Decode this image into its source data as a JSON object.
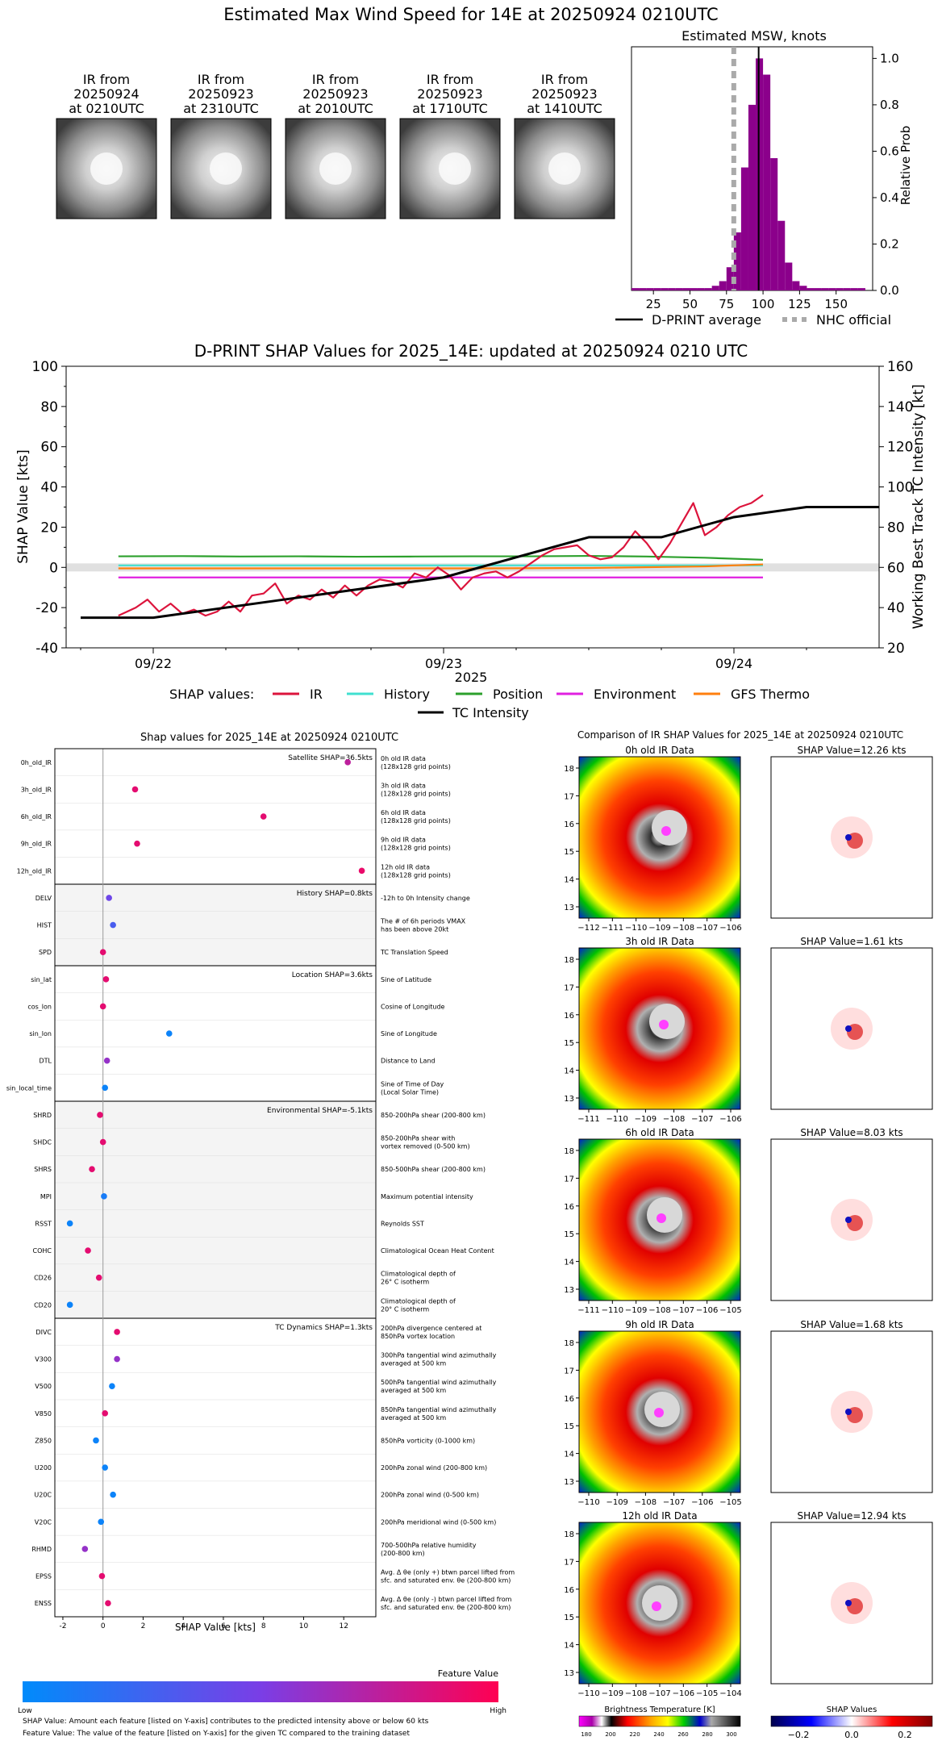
{
  "top": {
    "title": "Estimated Max Wind Speed for 14E at 20250924 0210UTC",
    "ir_thumbnails": [
      {
        "l1": "IR from",
        "l2": "20250924",
        "l3": "at 0210UTC"
      },
      {
        "l1": "IR from",
        "l2": "20250923",
        "l3": "at 2310UTC"
      },
      {
        "l1": "IR from",
        "l2": "20250923",
        "l3": "at 2010UTC"
      },
      {
        "l1": "IR from",
        "l2": "20250923",
        "l3": "at 1710UTC"
      },
      {
        "l1": "IR from",
        "l2": "20250923",
        "l3": "at 1410UTC"
      }
    ],
    "hist_title": "Estimated MSW, knots",
    "hist_ylabel": "Relative Prob",
    "legend_avg": "D-PRINT average",
    "legend_nhc": "NHC official"
  },
  "ts": {
    "title": "D-PRINT SHAP Values for 2025_14E: updated at 20250924 0210 UTC",
    "ylabel_left": "SHAP Value [kts]",
    "ylabel_right": "Working Best Track TC Intensity [kt]",
    "xlabel": "2025",
    "legend_title": "SHAP values:",
    "legend_tc": "TC Intensity"
  },
  "shap": {
    "title": "Shap values for 2025_14E at 20250924 0210UTC",
    "xlabel": "SHAP Value [kts]",
    "colorbar_title": "Feature Value",
    "colorbar_low": "Low",
    "colorbar_high": "High",
    "footnote1": "SHAP Value: Amount each feature [listed on Y-axis] contributes to the predicted intensity above or below 60 kts",
    "footnote2": "Feature Value: The value of the feature [listed on Y-axis] for the given TC compared to the training dataset",
    "groups": [
      {
        "label": "Satellite SHAP=36.5kts"
      },
      {
        "label": "History SHAP=0.8kts"
      },
      {
        "label": "Location SHAP=3.6kts"
      },
      {
        "label": "Environmental SHAP=-5.1kts"
      },
      {
        "label": "TC Dynamics SHAP=1.3kts"
      }
    ]
  },
  "ir": {
    "title": "Comparison of IR SHAP Values for 2025_14E at 20250924 0210UTC",
    "rows": [
      {
        "ir_title": "0h old IR Data",
        "shap_title": "SHAP Value=12.26 kts",
        "x_ticks": [
          "−112",
          "−111",
          "−110",
          "−109",
          "−108",
          "−107",
          "−106"
        ],
        "y_ticks": [
          "18",
          "17",
          "16",
          "15",
          "14",
          "13"
        ]
      },
      {
        "ir_title": "3h old IR Data",
        "shap_title": "SHAP Value=1.61 kts",
        "x_ticks": [
          "−111",
          "−110",
          "−109",
          "−108",
          "−107",
          "−106"
        ],
        "y_ticks": [
          "18",
          "17",
          "16",
          "15",
          "14",
          "13"
        ]
      },
      {
        "ir_title": "6h old IR Data",
        "shap_title": "SHAP Value=8.03 kts",
        "x_ticks": [
          "−111",
          "−110",
          "−109",
          "−108",
          "−107",
          "−106",
          "−105"
        ],
        "y_ticks": [
          "18",
          "17",
          "16",
          "15",
          "14",
          "13"
        ]
      },
      {
        "ir_title": "9h old IR Data",
        "shap_title": "SHAP Value=1.68 kts",
        "x_ticks": [
          "−110",
          "−109",
          "−108",
          "−107",
          "−106",
          "−105"
        ],
        "y_ticks": [
          "18",
          "17",
          "16",
          "15",
          "14",
          "13"
        ]
      },
      {
        "ir_title": "12h old IR Data",
        "shap_title": "SHAP Value=12.94 kts",
        "x_ticks": [
          "−110",
          "−109",
          "−108",
          "−107",
          "−106",
          "−105",
          "−104"
        ],
        "y_ticks": [
          "18",
          "17",
          "16",
          "15",
          "14",
          "13"
        ]
      }
    ],
    "cbar_bt_label": "Brightness Temperature [K]",
    "cbar_bt_ticks": [
      "180",
      "200",
      "220",
      "240",
      "260",
      "280",
      "300"
    ],
    "cbar_shap_label": "SHAP Values",
    "cbar_shap_ticks": [
      "−0.2",
      "0.0",
      "0.2"
    ]
  },
  "chart_data": [
    {
      "type": "bar",
      "title": "Estimated MSW, knots",
      "xlabel": "",
      "ylabel": "Relative Prob",
      "xlim": [
        10,
        175
      ],
      "ylim": [
        0,
        1.0
      ],
      "x_ticks": [
        25,
        50,
        75,
        100,
        125,
        150
      ],
      "y_ticks": [
        0.0,
        0.2,
        0.4,
        0.6,
        0.8,
        1.0
      ],
      "bin_width": 5,
      "bins": [
        {
          "x": 10,
          "y": 0.01
        },
        {
          "x": 15,
          "y": 0.01
        },
        {
          "x": 20,
          "y": 0.01
        },
        {
          "x": 25,
          "y": 0.01
        },
        {
          "x": 30,
          "y": 0.01
        },
        {
          "x": 35,
          "y": 0.01
        },
        {
          "x": 40,
          "y": 0.01
        },
        {
          "x": 45,
          "y": 0.01
        },
        {
          "x": 50,
          "y": 0.01
        },
        {
          "x": 55,
          "y": 0.01
        },
        {
          "x": 60,
          "y": 0.01
        },
        {
          "x": 65,
          "y": 0.02
        },
        {
          "x": 70,
          "y": 0.04
        },
        {
          "x": 75,
          "y": 0.1
        },
        {
          "x": 80,
          "y": 0.25
        },
        {
          "x": 85,
          "y": 0.53
        },
        {
          "x": 90,
          "y": 0.8
        },
        {
          "x": 95,
          "y": 1.0
        },
        {
          "x": 100,
          "y": 0.93
        },
        {
          "x": 105,
          "y": 0.57
        },
        {
          "x": 110,
          "y": 0.3
        },
        {
          "x": 115,
          "y": 0.12
        },
        {
          "x": 120,
          "y": 0.04
        },
        {
          "x": 125,
          "y": 0.02
        },
        {
          "x": 130,
          "y": 0.01
        },
        {
          "x": 135,
          "y": 0.01
        },
        {
          "x": 140,
          "y": 0.01
        },
        {
          "x": 145,
          "y": 0.01
        },
        {
          "x": 150,
          "y": 0.01
        },
        {
          "x": 155,
          "y": 0.01
        },
        {
          "x": 160,
          "y": 0.01
        },
        {
          "x": 165,
          "y": 0.01
        }
      ],
      "dprint_average": 97,
      "nhc_official": 80,
      "bar_color": "#8b008b"
    },
    {
      "type": "line",
      "title": "D-PRINT SHAP Values for 2025_14E: updated at 20250924 0210 UTC",
      "xlabel": "2025",
      "ylabel": "SHAP Value [kts]",
      "y2label": "Working Best Track TC Intensity [kt]",
      "xlim": [
        -0.3,
        2.5
      ],
      "ylim": [
        -40,
        100
      ],
      "y2lim": [
        20,
        160
      ],
      "x_ticks": [
        {
          "x": 0,
          "label": "09/22"
        },
        {
          "x": 1,
          "label": "09/23"
        },
        {
          "x": 2,
          "label": "09/24"
        }
      ],
      "y_ticks": [
        -40,
        -20,
        0,
        20,
        40,
        60,
        80,
        100
      ],
      "y2_ticks": [
        20,
        40,
        60,
        80,
        100,
        120,
        140,
        160
      ],
      "series": [
        {
          "name": "IR",
          "color": "#dc143c",
          "x": [
            -0.12,
            -0.06,
            -0.02,
            0.02,
            0.06,
            0.1,
            0.14,
            0.18,
            0.22,
            0.26,
            0.3,
            0.34,
            0.38,
            0.42,
            0.46,
            0.5,
            0.54,
            0.58,
            0.62,
            0.66,
            0.7,
            0.74,
            0.78,
            0.82,
            0.86,
            0.9,
            0.94,
            0.98,
            1.02,
            1.06,
            1.1,
            1.14,
            1.18,
            1.22,
            1.26,
            1.3,
            1.34,
            1.38,
            1.42,
            1.46,
            1.5,
            1.54,
            1.58,
            1.62,
            1.66,
            1.7,
            1.74,
            1.78,
            1.82,
            1.86,
            1.9,
            1.94,
            1.98,
            2.02,
            2.06,
            2.1
          ],
          "y": [
            -24,
            -20,
            -16,
            -22,
            -18,
            -23,
            -21,
            -24,
            -22,
            -17,
            -22,
            -14,
            -13,
            -8,
            -18,
            -14,
            -16,
            -11,
            -15,
            -9,
            -14,
            -9,
            -6,
            -7,
            -10,
            -3,
            -5,
            0,
            -4,
            -11,
            -5,
            -3,
            -2,
            -5,
            -2,
            2,
            6,
            9,
            10,
            11,
            6,
            4,
            5,
            10,
            18,
            12,
            4,
            12,
            22,
            32,
            16,
            20,
            26,
            30,
            32,
            36
          ]
        },
        {
          "name": "History",
          "color": "#40e0d0",
          "x": [
            -0.12,
            0.3,
            0.7,
            1.1,
            1.5,
            1.9,
            2.1
          ],
          "y": [
            1,
            1,
            1,
            1,
            1,
            1,
            1
          ]
        },
        {
          "name": "Position",
          "color": "#2ca02c",
          "x": [
            -0.12,
            0.1,
            0.3,
            0.5,
            0.7,
            0.9,
            1.1,
            1.3,
            1.5,
            1.7,
            1.9,
            2.1
          ],
          "y": [
            5.5,
            5.6,
            5.4,
            5.5,
            5.3,
            5.4,
            5.5,
            5.5,
            5.7,
            5.4,
            4.8,
            3.8
          ]
        },
        {
          "name": "Environment",
          "color": "#e020e0",
          "x": [
            -0.12,
            0.3,
            0.7,
            1.1,
            1.5,
            1.9,
            2.1
          ],
          "y": [
            -5,
            -5,
            -5,
            -5,
            -5,
            -5,
            -5
          ]
        },
        {
          "name": "GFS Thermo",
          "color": "#ff7f0e",
          "x": [
            -0.12,
            0.3,
            0.7,
            1.1,
            1.5,
            1.9,
            2.1
          ],
          "y": [
            -0.5,
            -0.5,
            -0.5,
            -0.5,
            -0.3,
            0.5,
            1.5
          ]
        },
        {
          "name": "TC Intensity",
          "color": "#000000",
          "axis": "right",
          "x": [
            -0.25,
            0.0,
            0.5,
            1.0,
            1.5,
            1.75,
            2.0,
            2.25,
            2.5
          ],
          "y": [
            35,
            35,
            45,
            55,
            75,
            75,
            85,
            90,
            90
          ]
        }
      ]
    },
    {
      "type": "scatter",
      "title": "Shap values for 2025_14E at 20250924 0210UTC",
      "xlabel": "SHAP Value [kts]",
      "ylabel": "",
      "xlim": [
        -2.4,
        13.6
      ],
      "x_ticks": [
        -2,
        0,
        2,
        4,
        6,
        8,
        10,
        12
      ],
      "features": [
        {
          "name": "0h_old_IR",
          "desc": [
            "0h old IR data",
            "(128x128 grid points)"
          ],
          "shap": 12.2,
          "value": 0.75
        },
        {
          "name": "3h_old_IR",
          "desc": [
            "3h old IR data",
            "(128x128 grid points)"
          ],
          "shap": 1.6,
          "value": 0.9
        },
        {
          "name": "6h_old_IR",
          "desc": [
            "6h old IR data",
            "(128x128 grid points)"
          ],
          "shap": 8.0,
          "value": 0.9
        },
        {
          "name": "9h_old_IR",
          "desc": [
            "9h old IR data",
            "(128x128 grid points)"
          ],
          "shap": 1.7,
          "value": 0.9
        },
        {
          "name": "12h_old_IR",
          "desc": [
            "12h old IR data",
            "(128x128 grid points)"
          ],
          "shap": 12.9,
          "value": 0.92
        },
        {
          "name": "DELV",
          "desc": [
            "-12h to 0h Intensity change"
          ],
          "shap": 0.3,
          "value": 0.45
        },
        {
          "name": "HIST",
          "desc": [
            "The # of 6h periods VMAX",
            "has been above 20kt"
          ],
          "shap": 0.5,
          "value": 0.3
        },
        {
          "name": "SPD",
          "desc": [
            "TC Translation Speed"
          ],
          "shap": 0.0,
          "value": 0.9
        },
        {
          "name": "sin_lat",
          "desc": [
            "Sine of Latitude"
          ],
          "shap": 0.15,
          "value": 0.9
        },
        {
          "name": "cos_lon",
          "desc": [
            "Cosine of Longitude"
          ],
          "shap": 0.0,
          "value": 0.9
        },
        {
          "name": "sin_lon",
          "desc": [
            "Sine of Longitude"
          ],
          "shap": 3.3,
          "value": 0.05
        },
        {
          "name": "DTL",
          "desc": [
            "Distance to Land"
          ],
          "shap": 0.2,
          "value": 0.6
        },
        {
          "name": "sin_local_time",
          "desc": [
            "Sine of Time of Day",
            "(Local Solar Time)"
          ],
          "shap": 0.1,
          "value": 0.05
        },
        {
          "name": "SHRD",
          "desc": [
            "850-200hPa shear (200-800 km)"
          ],
          "shap": -0.15,
          "value": 0.9
        },
        {
          "name": "SHDC",
          "desc": [
            "850-200hPa shear with",
            "vortex removed (0-500 km)"
          ],
          "shap": 0.0,
          "value": 0.9
        },
        {
          "name": "SHRS",
          "desc": [
            "850-500hPa shear (200-800 km)"
          ],
          "shap": -0.55,
          "value": 0.9
        },
        {
          "name": "MPI",
          "desc": [
            "Maximum potential intensity"
          ],
          "shap": 0.05,
          "value": 0.1
        },
        {
          "name": "RSST",
          "desc": [
            "Reynolds SST"
          ],
          "shap": -1.65,
          "value": 0.05
        },
        {
          "name": "COHC",
          "desc": [
            "Climatological Ocean Heat Content"
          ],
          "shap": -0.75,
          "value": 0.9
        },
        {
          "name": "CD26",
          "desc": [
            "Climatological depth of",
            "26° C isotherm"
          ],
          "shap": -0.2,
          "value": 0.9
        },
        {
          "name": "CD20",
          "desc": [
            "Climatological depth of",
            "20° C isotherm"
          ],
          "shap": -1.65,
          "value": 0.05
        },
        {
          "name": "DIVC",
          "desc": [
            "200hPa divergence centered at",
            "850hPa vortex location"
          ],
          "shap": 0.7,
          "value": 0.9
        },
        {
          "name": "V300",
          "desc": [
            "300hPa tangential wind azimuthally",
            "averaged at 500 km"
          ],
          "shap": 0.7,
          "value": 0.6
        },
        {
          "name": "V500",
          "desc": [
            "500hPa tangential wind azimuthally",
            "averaged at 500 km"
          ],
          "shap": 0.45,
          "value": 0.05
        },
        {
          "name": "V850",
          "desc": [
            "850hPa tangential wind azimuthally",
            "averaged at 500 km"
          ],
          "shap": 0.1,
          "value": 0.9
        },
        {
          "name": "Z850",
          "desc": [
            "850hPa vorticity (0-1000 km)"
          ],
          "shap": -0.35,
          "value": 0.05
        },
        {
          "name": "U200",
          "desc": [
            "200hPa zonal wind (200-800 km)"
          ],
          "shap": 0.1,
          "value": 0.05
        },
        {
          "name": "U20C",
          "desc": [
            "200hPa zonal wind (0-500 km)"
          ],
          "shap": 0.5,
          "value": 0.05
        },
        {
          "name": "V20C",
          "desc": [
            "200hPa meridional wind (0-500 km)"
          ],
          "shap": -0.1,
          "value": 0.05
        },
        {
          "name": "RHMD",
          "desc": [
            "700-500hPa relative humidity",
            "(200-800 km)"
          ],
          "shap": -0.9,
          "value": 0.6
        },
        {
          "name": "EPSS",
          "desc": [
            "Avg. Δ θe (only +) btwn parcel lifted from",
            "sfc. and saturated env. θe (200-800 km)"
          ],
          "shap": -0.05,
          "value": 0.9
        },
        {
          "name": "ENSS",
          "desc": [
            "Avg. Δ θe (only -) btwn parcel lifted from",
            "sfc. and saturated env. θe (200-800 km)"
          ],
          "shap": 0.25,
          "value": 0.9
        }
      ],
      "group_sizes": [
        5,
        3,
        5,
        8,
        11
      ]
    }
  ]
}
